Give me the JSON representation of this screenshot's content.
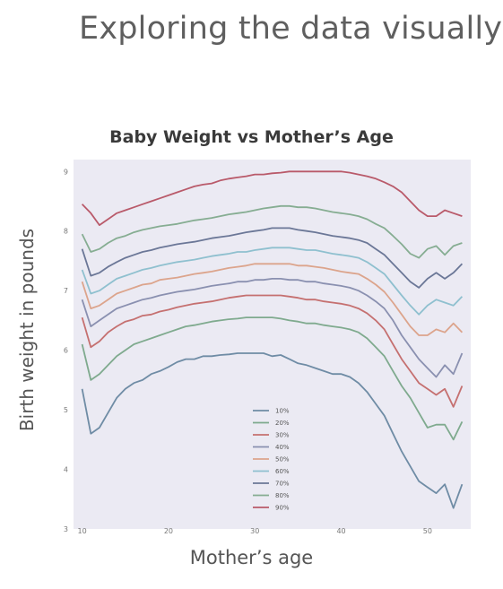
{
  "slide": {
    "title": "Exploring the data visually"
  },
  "chart_data": {
    "type": "line",
    "title": "Baby Weight vs Mother’s Age",
    "xlabel": "Mother’s age",
    "ylabel": "Birth weight in pounds",
    "xlim": [
      9,
      55
    ],
    "ylim": [
      3,
      9.2
    ],
    "xticks": [
      10,
      20,
      30,
      40,
      50
    ],
    "yticks": [
      3,
      4,
      5,
      6,
      7,
      8,
      9
    ],
    "grid": false,
    "legend_position": "bottom-center",
    "x": [
      10,
      11,
      12,
      13,
      14,
      15,
      16,
      17,
      18,
      19,
      20,
      21,
      22,
      23,
      24,
      25,
      26,
      27,
      28,
      29,
      30,
      31,
      32,
      33,
      34,
      35,
      36,
      37,
      38,
      39,
      40,
      41,
      42,
      43,
      44,
      45,
      46,
      47,
      48,
      49,
      50,
      51,
      52,
      53,
      54
    ],
    "series": [
      {
        "name": "10%",
        "color": "#6f8ca5",
        "values": [
          5.35,
          4.6,
          4.7,
          4.95,
          5.2,
          5.35,
          5.45,
          5.5,
          5.6,
          5.65,
          5.72,
          5.8,
          5.85,
          5.85,
          5.9,
          5.9,
          5.92,
          5.93,
          5.95,
          5.95,
          5.95,
          5.95,
          5.9,
          5.92,
          5.85,
          5.78,
          5.75,
          5.7,
          5.65,
          5.6,
          5.6,
          5.55,
          5.45,
          5.3,
          5.1,
          4.9,
          4.6,
          4.3,
          4.05,
          3.8,
          3.7,
          3.6,
          3.75,
          3.35,
          3.75
        ]
      },
      {
        "name": "20%",
        "color": "#7faa8e",
        "values": [
          6.1,
          5.5,
          5.6,
          5.75,
          5.9,
          6.0,
          6.1,
          6.15,
          6.2,
          6.25,
          6.3,
          6.35,
          6.4,
          6.42,
          6.45,
          6.48,
          6.5,
          6.52,
          6.53,
          6.55,
          6.55,
          6.55,
          6.55,
          6.53,
          6.5,
          6.48,
          6.45,
          6.45,
          6.42,
          6.4,
          6.38,
          6.35,
          6.3,
          6.2,
          6.05,
          5.9,
          5.65,
          5.4,
          5.2,
          4.95,
          4.7,
          4.75,
          4.75,
          4.5,
          4.8
        ]
      },
      {
        "name": "30%",
        "color": "#c57070",
        "values": [
          6.55,
          6.05,
          6.15,
          6.3,
          6.4,
          6.48,
          6.52,
          6.58,
          6.6,
          6.65,
          6.68,
          6.72,
          6.75,
          6.78,
          6.8,
          6.82,
          6.85,
          6.88,
          6.9,
          6.92,
          6.92,
          6.92,
          6.92,
          6.92,
          6.9,
          6.88,
          6.85,
          6.85,
          6.82,
          6.8,
          6.78,
          6.75,
          6.7,
          6.62,
          6.5,
          6.35,
          6.1,
          5.85,
          5.65,
          5.45,
          5.35,
          5.25,
          5.35,
          5.05,
          5.4
        ]
      },
      {
        "name": "40%",
        "color": "#8a90b0",
        "values": [
          6.85,
          6.4,
          6.5,
          6.6,
          6.7,
          6.75,
          6.8,
          6.85,
          6.88,
          6.92,
          6.95,
          6.98,
          7.0,
          7.02,
          7.05,
          7.08,
          7.1,
          7.12,
          7.15,
          7.15,
          7.18,
          7.18,
          7.2,
          7.2,
          7.18,
          7.18,
          7.15,
          7.15,
          7.12,
          7.1,
          7.08,
          7.05,
          7.0,
          6.92,
          6.82,
          6.7,
          6.5,
          6.25,
          6.05,
          5.85,
          5.7,
          5.55,
          5.75,
          5.6,
          5.95
        ]
      },
      {
        "name": "50%",
        "color": "#dca48c",
        "values": [
          7.15,
          6.7,
          6.75,
          6.85,
          6.95,
          7.0,
          7.05,
          7.1,
          7.12,
          7.18,
          7.2,
          7.22,
          7.25,
          7.28,
          7.3,
          7.32,
          7.35,
          7.38,
          7.4,
          7.42,
          7.45,
          7.45,
          7.45,
          7.45,
          7.45,
          7.42,
          7.42,
          7.4,
          7.38,
          7.35,
          7.32,
          7.3,
          7.28,
          7.2,
          7.1,
          6.98,
          6.8,
          6.6,
          6.4,
          6.25,
          6.25,
          6.35,
          6.3,
          6.45,
          6.3
        ]
      },
      {
        "name": "60%",
        "color": "#8fc0cf",
        "values": [
          7.35,
          6.95,
          7.0,
          7.1,
          7.2,
          7.25,
          7.3,
          7.35,
          7.38,
          7.42,
          7.45,
          7.48,
          7.5,
          7.52,
          7.55,
          7.58,
          7.6,
          7.62,
          7.65,
          7.65,
          7.68,
          7.7,
          7.72,
          7.72,
          7.72,
          7.7,
          7.68,
          7.68,
          7.65,
          7.62,
          7.6,
          7.58,
          7.55,
          7.48,
          7.38,
          7.28,
          7.1,
          6.92,
          6.75,
          6.6,
          6.75,
          6.85,
          6.8,
          6.75,
          6.9
        ]
      },
      {
        "name": "70%",
        "color": "#6b7797",
        "values": [
          7.7,
          7.25,
          7.3,
          7.4,
          7.48,
          7.55,
          7.6,
          7.65,
          7.68,
          7.72,
          7.75,
          7.78,
          7.8,
          7.82,
          7.85,
          7.88,
          7.9,
          7.92,
          7.95,
          7.98,
          8.0,
          8.02,
          8.05,
          8.05,
          8.05,
          8.02,
          8.0,
          7.98,
          7.95,
          7.92,
          7.9,
          7.88,
          7.85,
          7.8,
          7.7,
          7.6,
          7.45,
          7.3,
          7.15,
          7.05,
          7.2,
          7.3,
          7.2,
          7.3,
          7.45
        ]
      },
      {
        "name": "80%",
        "color": "#86ad92",
        "values": [
          7.95,
          7.65,
          7.7,
          7.8,
          7.88,
          7.92,
          7.98,
          8.02,
          8.05,
          8.08,
          8.1,
          8.12,
          8.15,
          8.18,
          8.2,
          8.22,
          8.25,
          8.28,
          8.3,
          8.32,
          8.35,
          8.38,
          8.4,
          8.42,
          8.42,
          8.4,
          8.4,
          8.38,
          8.35,
          8.32,
          8.3,
          8.28,
          8.25,
          8.2,
          8.12,
          8.05,
          7.92,
          7.78,
          7.62,
          7.55,
          7.7,
          7.75,
          7.6,
          7.75,
          7.8
        ]
      },
      {
        "name": "90%",
        "color": "#b95a6a",
        "values": [
          8.45,
          8.3,
          8.1,
          8.2,
          8.3,
          8.35,
          8.4,
          8.45,
          8.5,
          8.55,
          8.6,
          8.65,
          8.7,
          8.75,
          8.78,
          8.8,
          8.85,
          8.88,
          8.9,
          8.92,
          8.95,
          8.95,
          8.97,
          8.98,
          9.0,
          9.0,
          9.0,
          9.0,
          9.0,
          9.0,
          9.0,
          8.98,
          8.95,
          8.92,
          8.88,
          8.82,
          8.75,
          8.65,
          8.5,
          8.35,
          8.25,
          8.25,
          8.35,
          8.3,
          8.25
        ]
      }
    ]
  }
}
